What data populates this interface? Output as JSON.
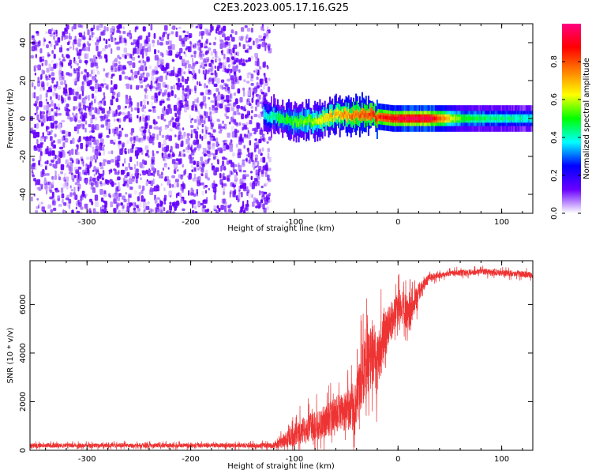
{
  "figure": {
    "title": "C2E3.2023.005.17.16.G25"
  },
  "chart_data": [
    {
      "type": "heatmap",
      "xlabel": "Height of straight line (km)",
      "ylabel": "Frequency (Hz)",
      "xlim": [
        -355,
        130
      ],
      "ylim": [
        -50,
        50
      ],
      "x_ticks": [
        -300,
        -200,
        -100,
        0,
        100
      ],
      "y_ticks": [
        -40,
        -20,
        0,
        20,
        40
      ],
      "colorbar": {
        "label": "Normalized spectral amplitude",
        "range": [
          0,
          1
        ],
        "ticks": [
          "0.0",
          "0.2",
          "0.4",
          "0.6",
          "0.8"
        ],
        "colormap": [
          "#ffffff",
          "#6a00ff",
          "#0000ff",
          "#00ffff",
          "#00ff00",
          "#ffff00",
          "#ff7f00",
          "#ff0000",
          "#ff0080"
        ]
      },
      "noise_region": {
        "x": [
          -355,
          -130
        ],
        "amplitude": [
          0.02,
          0.12
        ]
      },
      "signal_trace": {
        "x": [
          -130,
          -110,
          -95,
          -80,
          -65,
          -50,
          -35,
          -20,
          -5,
          10,
          30,
          60,
          90,
          130
        ],
        "freq_hz": [
          2,
          0,
          -2,
          -1,
          1,
          2,
          2,
          1,
          0,
          0,
          0,
          0,
          0,
          0
        ],
        "amplitude": [
          0.4,
          0.5,
          0.55,
          0.6,
          0.7,
          0.75,
          0.8,
          0.85,
          0.9,
          0.95,
          0.95,
          0.5,
          0.45,
          0.4
        ]
      }
    },
    {
      "type": "line",
      "xlabel": "Height of straight line (km)",
      "ylabel": "SNR (10 * v/v)",
      "xlim": [
        -355,
        130
      ],
      "ylim": [
        0,
        7800
      ],
      "x_ticks": [
        -300,
        -200,
        -100,
        0,
        100
      ],
      "y_ticks": [
        0,
        2000,
        4000,
        6000
      ],
      "series": [
        {
          "color": "#ee3333",
          "x": [
            -355,
            -300,
            -250,
            -200,
            -150,
            -120,
            -110,
            -100,
            -90,
            -80,
            -70,
            -60,
            -50,
            -40,
            -35,
            -30,
            -25,
            -20,
            -15,
            -10,
            -5,
            0,
            5,
            10,
            15,
            20,
            25,
            30,
            40,
            50,
            60,
            80,
            100,
            120,
            130
          ],
          "y": [
            200,
            200,
            200,
            200,
            200,
            200,
            400,
            600,
            900,
            1000,
            1200,
            1500,
            1600,
            2000,
            3000,
            3500,
            4000,
            3500,
            4500,
            5000,
            5500,
            5800,
            6000,
            5500,
            6000,
            6500,
            6800,
            7100,
            7200,
            7300,
            7300,
            7350,
            7300,
            7250,
            7200
          ],
          "noise_amp": [
            180,
            180,
            180,
            180,
            180,
            200,
            600,
            900,
            1100,
            1200,
            1400,
            1500,
            1600,
            2000,
            2600,
            2800,
            2600,
            2600,
            2200,
            1800,
            1500,
            1300,
            1300,
            1600,
            1000,
            800,
            500,
            300,
            250,
            250,
            250,
            250,
            250,
            250,
            250
          ]
        }
      ]
    }
  ]
}
